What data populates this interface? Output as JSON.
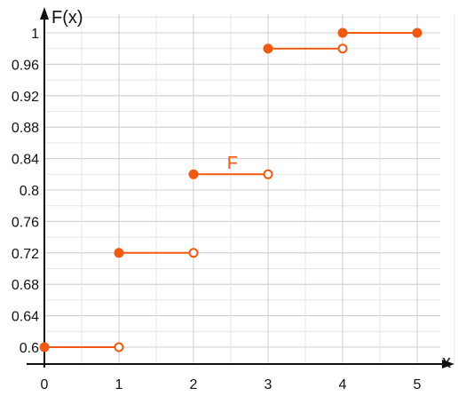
{
  "chart_data": {
    "type": "line",
    "title": "",
    "xlabel": "x",
    "ylabel": "F(x)",
    "xlim": [
      0,
      5
    ],
    "ylim": [
      0.6,
      1
    ],
    "x_ticks": [
      0,
      1,
      2,
      3,
      4,
      5
    ],
    "y_ticks": [
      0.6,
      0.64,
      0.68,
      0.72,
      0.76,
      0.8,
      0.84,
      0.88,
      0.92,
      0.96,
      1
    ],
    "y_tick_labels": [
      "0.6",
      "0.64",
      "0.68",
      "0.72",
      "0.76",
      "0.8",
      "0.84",
      "0.88",
      "0.92",
      "0.96",
      "1"
    ],
    "x_tick_labels": [
      "0",
      "1",
      "2",
      "3",
      "4",
      "5"
    ],
    "grid": true,
    "series": [
      {
        "name": "F",
        "color": "#f25a12",
        "label_at": [
          2.45,
          0.835
        ],
        "steps": [
          {
            "x_start": 0,
            "x_end": 1,
            "y": 0.6,
            "start_closed": true,
            "end_closed": false
          },
          {
            "x_start": 1,
            "x_end": 2,
            "y": 0.72,
            "start_closed": true,
            "end_closed": false
          },
          {
            "x_start": 2,
            "x_end": 3,
            "y": 0.82,
            "start_closed": true,
            "end_closed": false
          },
          {
            "x_start": 3,
            "x_end": 4,
            "y": 0.98,
            "start_closed": true,
            "end_closed": false
          },
          {
            "x_start": 4,
            "x_end": 5,
            "y": 1,
            "start_closed": true,
            "end_closed": true
          }
        ]
      }
    ]
  }
}
